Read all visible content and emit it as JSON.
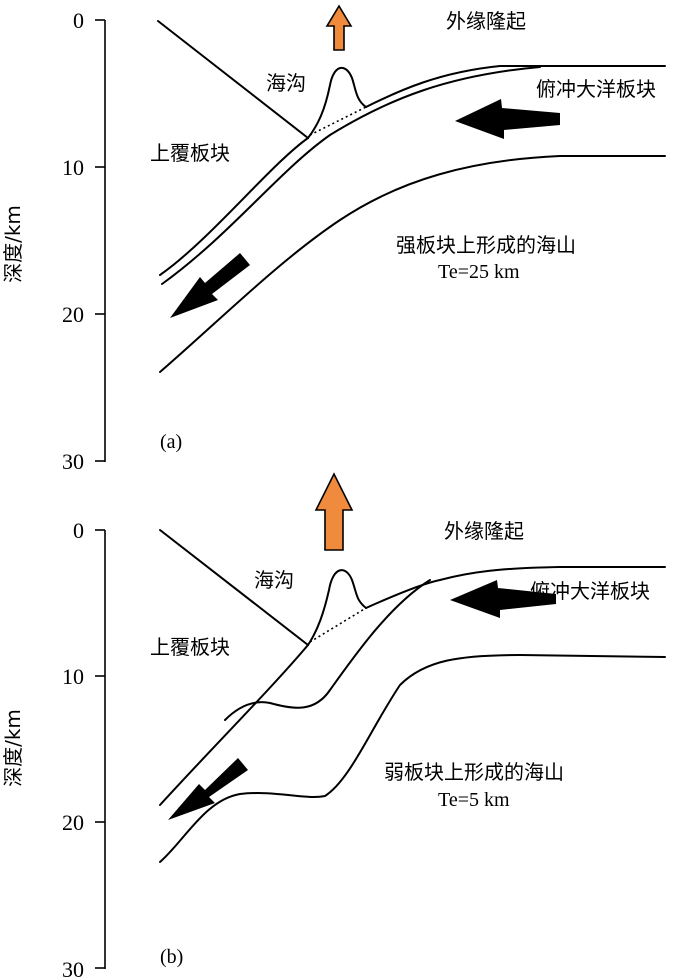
{
  "axis": {
    "label": "深度/km",
    "ticks": [
      "0",
      "10",
      "20",
      "30"
    ]
  },
  "panels": [
    {
      "tag": "(a)",
      "labels": {
        "outer_rise": "外缘隆起",
        "trench": "海沟",
        "subducting_plate": "俯冲大洋板块",
        "overriding_plate": "上覆板块",
        "caption_line1": "强板块上形成的海山",
        "caption_line2": "Te=25 km"
      }
    },
    {
      "tag": "(b)",
      "labels": {
        "outer_rise": "外缘隆起",
        "trench": "海沟",
        "subducting_plate": "俯冲大洋板块",
        "overriding_plate": "上覆板块",
        "caption_line1": "弱板块上形成的海山",
        "caption_line2": "Te=5 km"
      }
    }
  ],
  "colors": {
    "uplift_arrow": "#f08a3c",
    "plate_arrow": "#000000"
  }
}
